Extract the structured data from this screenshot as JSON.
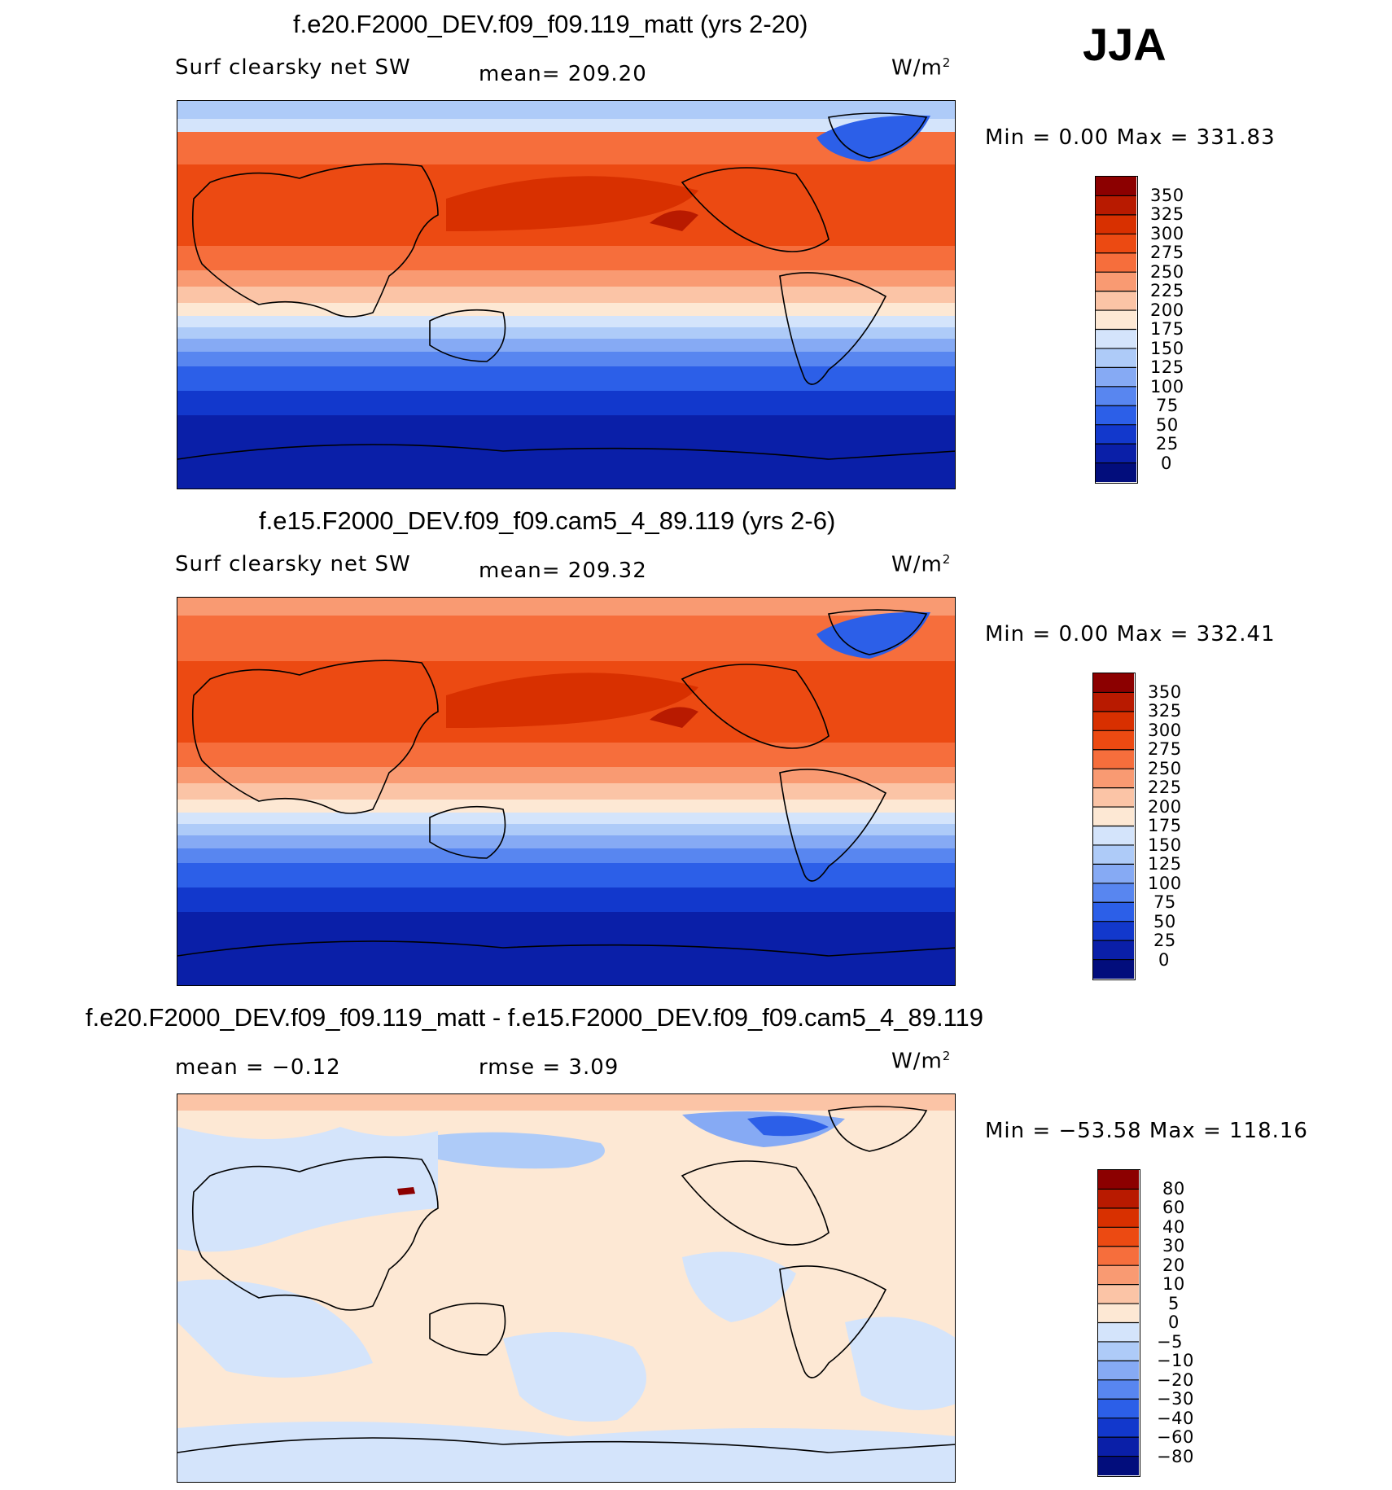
{
  "season": "JJA",
  "units_label": "W/m",
  "units_sup": "2",
  "chart_data": [
    {
      "type": "heatmap",
      "title": "f.e20.F2000_DEV.f09_f09.119_matt (yrs 2-20)",
      "variable": "Surf clearsky net SW",
      "mean_text": "mean=  209.20",
      "min_text": "Min  =     0.00  Max  =  331.83",
      "min": 0.0,
      "max": 331.83,
      "mean": 209.2,
      "colorbar_levels": [
        "350",
        "325",
        "300",
        "275",
        "250",
        "225",
        "200",
        "175",
        "150",
        "125",
        "100",
        "75",
        "50",
        "25",
        "0"
      ],
      "colorbar_colors": [
        "#8c0000",
        "#b81a00",
        "#d83000",
        "#ec4a12",
        "#f66e3c",
        "#f99a72",
        "#fbc4a6",
        "#fde8d4",
        "#d4e4fb",
        "#aecbf8",
        "#86aaf4",
        "#5886f0",
        "#2c5fe8",
        "#1238cc",
        "#0a1fa8",
        "#020d7c"
      ],
      "projection": "Cylindrical equidistant, centered on Pacific"
    },
    {
      "type": "heatmap",
      "title": "f.e15.F2000_DEV.f09_f09.cam5_4_89.119 (yrs 2-6)",
      "variable": "Surf clearsky net SW",
      "mean_text": "mean=  209.32",
      "min_text": "Min  =     0.00  Max  =  332.41",
      "min": 0.0,
      "max": 332.41,
      "mean": 209.32,
      "colorbar_levels": [
        "350",
        "325",
        "300",
        "275",
        "250",
        "225",
        "200",
        "175",
        "150",
        "125",
        "100",
        "75",
        "50",
        "25",
        "0"
      ],
      "colorbar_colors": [
        "#8c0000",
        "#b81a00",
        "#d83000",
        "#ec4a12",
        "#f66e3c",
        "#f99a72",
        "#fbc4a6",
        "#fde8d4",
        "#d4e4fb",
        "#aecbf8",
        "#86aaf4",
        "#5886f0",
        "#2c5fe8",
        "#1238cc",
        "#0a1fa8",
        "#020d7c"
      ],
      "projection": "Cylindrical equidistant, centered on Pacific"
    },
    {
      "type": "heatmap",
      "title": "f.e20.F2000_DEV.f09_f09.119_matt - f.e15.F2000_DEV.f09_f09.cam5_4_89.119",
      "mean_text": "mean  =   −0.12",
      "rmse_text": "rmse  =      3.09",
      "min_text": "Min  =  −53.58  Max  =  118.16",
      "min": -53.58,
      "max": 118.16,
      "mean": -0.12,
      "rmse": 3.09,
      "colorbar_levels": [
        "80",
        "60",
        "40",
        "30",
        "20",
        "10",
        "5",
        "0",
        "−5",
        "−10",
        "−20",
        "−30",
        "−40",
        "−60",
        "−80"
      ],
      "colorbar_colors": [
        "#8c0000",
        "#b81a00",
        "#d83000",
        "#ec4a12",
        "#f66e3c",
        "#f99a72",
        "#fbc4a6",
        "#fde8d4",
        "#d4e4fb",
        "#aecbf8",
        "#86aaf4",
        "#5886f0",
        "#2c5fe8",
        "#1238cc",
        "#0a1fa8",
        "#020d7c"
      ],
      "projection": "Cylindrical equidistant, centered on Pacific"
    }
  ]
}
